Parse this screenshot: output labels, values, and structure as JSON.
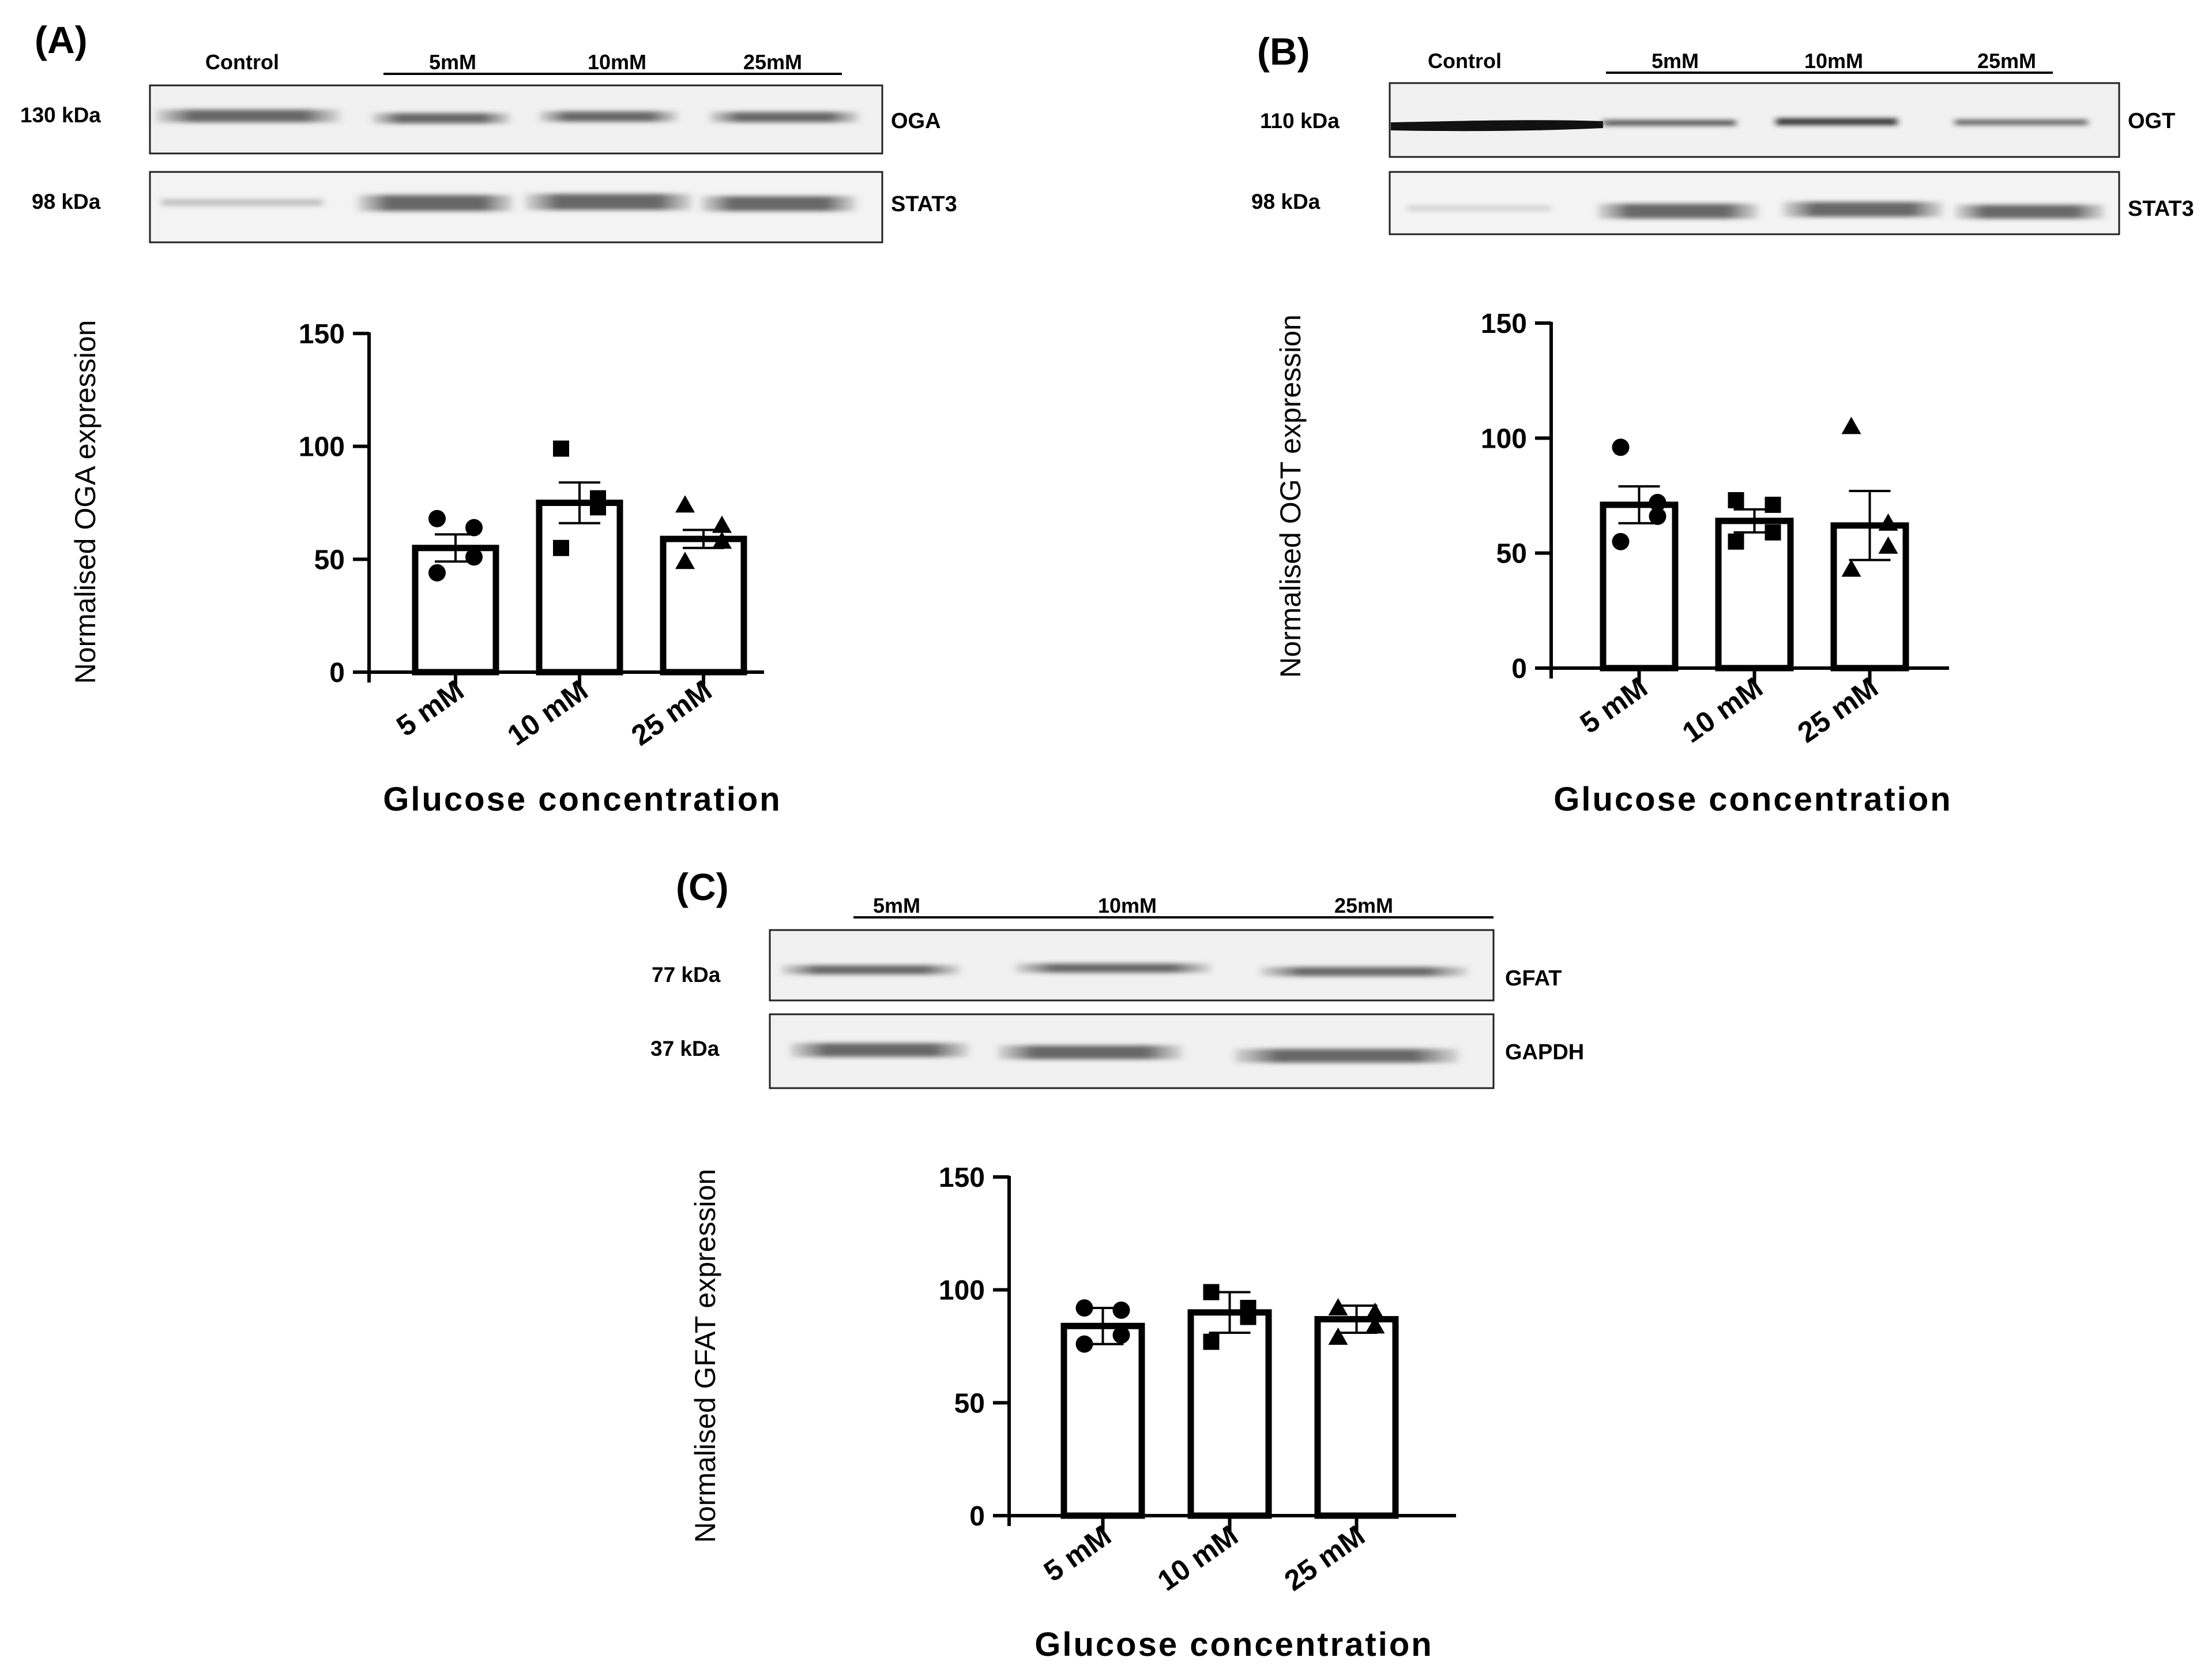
{
  "panels": [
    {
      "letter": "(A)",
      "blot": {
        "lanes": [
          "Control",
          "5mM",
          "10mM",
          "25mM"
        ],
        "rows": [
          {
            "kda": "130 kDa",
            "protein": "OGA"
          },
          {
            "kda": "98 kDa",
            "protein": "STAT3"
          }
        ]
      }
    },
    {
      "letter": "(B)",
      "blot": {
        "lanes": [
          "Control",
          "5mM",
          "10mM",
          "25mM"
        ],
        "rows": [
          {
            "kda": "110 kDa",
            "protein": "OGT"
          },
          {
            "kda": "98 kDa",
            "protein": "STAT3"
          }
        ]
      }
    },
    {
      "letter": "(C)",
      "blot": {
        "lanes": [
          "5mM",
          "10mM",
          "25mM"
        ],
        "rows": [
          {
            "kda": "77 kDa",
            "protein": "GFAT"
          },
          {
            "kda": "37 kDa",
            "protein": "GAPDH"
          }
        ]
      }
    }
  ],
  "chart_data": [
    {
      "type": "bar",
      "panel": "A",
      "categories": [
        "5 mM",
        "10 mM",
        "25 mM"
      ],
      "values": [
        55,
        75,
        59
      ],
      "error": [
        6,
        9,
        4
      ],
      "points": [
        [
          68,
          64,
          51,
          44
        ],
        [
          99,
          77,
          73,
          55
        ],
        [
          74,
          65,
          58,
          49
        ]
      ],
      "markers": [
        "circle",
        "square",
        "triangle"
      ],
      "xlabel": "Glucose concentration",
      "ylabel": "Normalised OGA expression",
      "ylim": [
        0,
        150
      ],
      "yticks": [
        "0",
        "50",
        "100",
        "150"
      ]
    },
    {
      "type": "bar",
      "panel": "B",
      "categories": [
        "5 mM",
        "10 mM",
        "25 mM"
      ],
      "values": [
        71,
        64,
        62
      ],
      "error": [
        8,
        5,
        15
      ],
      "points": [
        [
          96,
          72,
          66,
          55
        ],
        [
          73,
          71,
          59,
          55
        ],
        [
          105,
          63,
          53,
          43
        ]
      ],
      "markers": [
        "circle",
        "square",
        "triangle"
      ],
      "xlabel": "Glucose concentration",
      "ylabel": "Normalised OGT expression",
      "ylim": [
        0,
        150
      ],
      "yticks": [
        "0",
        "50",
        "100",
        "150"
      ]
    },
    {
      "type": "bar",
      "panel": "C",
      "categories": [
        "5 mM",
        "10 mM",
        "25 mM"
      ],
      "values": [
        84,
        90,
        87
      ],
      "error": [
        8,
        9,
        6
      ],
      "points": [
        [
          92,
          91,
          80,
          76
        ],
        [
          99,
          92,
          88,
          77
        ],
        [
          92,
          90,
          84,
          79
        ]
      ],
      "markers": [
        "circle",
        "square",
        "triangle"
      ],
      "xlabel": "Glucose concentration",
      "ylabel": "Normalised GFAT expression",
      "ylim": [
        0,
        150
      ],
      "yticks": [
        "0",
        "50",
        "100",
        "150"
      ]
    }
  ]
}
